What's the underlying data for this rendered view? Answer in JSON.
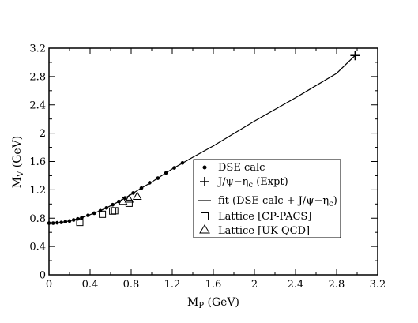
{
  "chart_data": {
    "type": "scatter",
    "xlabel": "M",
    "xlabel_sub": "P",
    "xlabel_unit": " (GeV)",
    "ylabel": "M",
    "ylabel_sub": "V",
    "ylabel_unit": " (GeV)",
    "xlim": [
      0,
      3.2
    ],
    "ylim": [
      0,
      3.2
    ],
    "xticks": [
      "0",
      "0.4",
      "0.8",
      "1.2",
      "1.6",
      "2",
      "2.4",
      "2.8",
      "3.2"
    ],
    "yticks": [
      "0",
      "0.4",
      "0.8",
      "1.2",
      "1.6",
      "2",
      "2.4",
      "2.8",
      "3.2"
    ],
    "grid": false,
    "legend_position": "bottom-right",
    "series": [
      {
        "name": "DSE calc",
        "marker": "filled-circle",
        "points": [
          [
            0.0,
            0.73
          ],
          [
            0.04,
            0.73
          ],
          [
            0.08,
            0.735
          ],
          [
            0.12,
            0.74
          ],
          [
            0.16,
            0.75
          ],
          [
            0.2,
            0.76
          ],
          [
            0.24,
            0.775
          ],
          [
            0.28,
            0.79
          ],
          [
            0.32,
            0.81
          ],
          [
            0.38,
            0.84
          ],
          [
            0.44,
            0.87
          ],
          [
            0.5,
            0.905
          ],
          [
            0.56,
            0.945
          ],
          [
            0.62,
            0.99
          ],
          [
            0.68,
            1.035
          ],
          [
            0.74,
            1.085
          ],
          [
            0.82,
            1.155
          ],
          [
            0.9,
            1.225
          ],
          [
            0.98,
            1.3
          ],
          [
            1.06,
            1.365
          ],
          [
            1.14,
            1.44
          ],
          [
            1.22,
            1.51
          ],
          [
            1.3,
            1.58
          ]
        ]
      },
      {
        "name": "J/ψ−η",
        "name_sub": "c",
        "name_suffix": " (Expt)",
        "marker": "plus",
        "points": [
          [
            2.98,
            3.097
          ]
        ]
      },
      {
        "name": "fit (DSE calc + J/ψ−η",
        "name_sub": "c",
        "name_suffix": ")",
        "marker": "line",
        "points": [
          [
            0.0,
            0.73
          ],
          [
            0.1,
            0.737
          ],
          [
            0.2,
            0.76
          ],
          [
            0.3,
            0.8
          ],
          [
            0.4,
            0.85
          ],
          [
            0.5,
            0.905
          ],
          [
            0.6,
            0.975
          ],
          [
            0.7,
            1.05
          ],
          [
            0.8,
            1.135
          ],
          [
            0.9,
            1.225
          ],
          [
            1.0,
            1.31
          ],
          [
            1.2,
            1.495
          ],
          [
            1.4,
            1.66
          ],
          [
            1.6,
            1.82
          ],
          [
            2.0,
            2.17
          ],
          [
            2.4,
            2.5
          ],
          [
            2.8,
            2.845
          ],
          [
            2.98,
            3.097
          ]
        ]
      },
      {
        "name": "Lattice [CP-PACS]",
        "marker": "open-square",
        "points": [
          [
            0.3,
            0.74
          ],
          [
            0.52,
            0.855
          ],
          [
            0.62,
            0.9
          ],
          [
            0.64,
            0.905
          ],
          [
            0.78,
            1.01
          ]
        ]
      },
      {
        "name": "Lattice [UK QCD]",
        "marker": "open-triangle",
        "points": [
          [
            0.72,
            1.04
          ],
          [
            0.78,
            1.07
          ],
          [
            0.86,
            1.11
          ]
        ]
      }
    ]
  }
}
